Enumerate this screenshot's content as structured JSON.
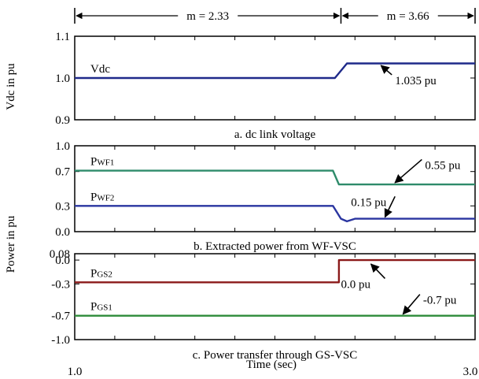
{
  "chart_data": {
    "type": "line",
    "x_range": [
      1.0,
      3.0
    ],
    "xlabel": "Time (sec)",
    "x_tick_labels": [
      "1.0",
      "3.0"
    ],
    "mode_bar": {
      "segments": [
        {
          "label": "m = 2.33",
          "x_start": 1.0,
          "x_end": 2.33
        },
        {
          "label": "m = 3.66",
          "x_start": 2.33,
          "x_end": 3.0
        }
      ]
    },
    "panels": [
      {
        "id": "a",
        "caption": "a. dc link voltage",
        "ylabel": "Vdc in pu",
        "ylim": [
          0.9,
          1.1
        ],
        "y_ticks": [
          {
            "value": 1.1,
            "label": "1.1"
          },
          {
            "value": 1.0,
            "label": "1.0"
          },
          {
            "value": 0.9,
            "label": "0.9"
          }
        ],
        "series": [
          {
            "name": "Vdc",
            "name_sub": "",
            "color": "#1f2a8a",
            "points": [
              [
                1.0,
                1.0
              ],
              [
                2.3,
                1.0
              ],
              [
                2.36,
                1.035
              ],
              [
                3.0,
                1.035
              ]
            ]
          }
        ],
        "annotations": [
          {
            "text": "1.035 pu",
            "x": 2.6,
            "y": 0.985,
            "arrow_to": [
              2.53,
              1.03
            ]
          }
        ]
      },
      {
        "id": "b",
        "caption": "b. Extracted power from WF-VSC",
        "ylabel": "",
        "ylim": [
          0.0,
          1.0
        ],
        "y_ticks": [
          {
            "value": 1.0,
            "label": "1.0"
          },
          {
            "value": 0.7,
            "label": "0.7"
          },
          {
            "value": 0.3,
            "label": "0.3"
          },
          {
            "value": 0.0,
            "label": "0.0"
          }
        ],
        "series": [
          {
            "name": "P",
            "name_sub": "WF1",
            "color": "#2e8b6a",
            "points": [
              [
                1.0,
                0.71
              ],
              [
                2.29,
                0.71
              ],
              [
                2.32,
                0.55
              ],
              [
                3.0,
                0.55
              ]
            ]
          },
          {
            "name": "P",
            "name_sub": "WF2",
            "color": "#2a35a0",
            "points": [
              [
                1.0,
                0.3
              ],
              [
                2.29,
                0.3
              ],
              [
                2.33,
                0.15
              ],
              [
                2.36,
                0.12
              ],
              [
                2.4,
                0.15
              ],
              [
                3.0,
                0.15
              ]
            ]
          }
        ],
        "annotations": [
          {
            "text": "0.55 pu",
            "x": 2.75,
            "y": 0.73,
            "arrow_to": [
              2.6,
              0.57
            ]
          },
          {
            "text": "0.15 pu",
            "x": 2.38,
            "y": 0.3,
            "arrow_to": [
              2.55,
              0.17
            ]
          }
        ]
      },
      {
        "id": "c",
        "caption": "c. Power transfer through GS-VSC",
        "ylabel": "Power in pu",
        "ylim": [
          -1.0,
          0.08
        ],
        "y_ticks": [
          {
            "value": 0.08,
            "label": "0.08"
          },
          {
            "value": 0.0,
            "label": "0.0"
          },
          {
            "value": -0.3,
            "label": "-0.3"
          },
          {
            "value": -0.7,
            "label": "-0.7"
          },
          {
            "value": -1.0,
            "label": "-1.0"
          }
        ],
        "series": [
          {
            "name": "P",
            "name_sub": "GS2",
            "color": "#8b1a1a",
            "points": [
              [
                1.0,
                -0.28
              ],
              [
                2.32,
                -0.28
              ],
              [
                2.32,
                0.0
              ],
              [
                3.0,
                0.0
              ]
            ]
          },
          {
            "name": "P",
            "name_sub": "GS1",
            "color": "#2e8b3a",
            "points": [
              [
                1.0,
                -0.7
              ],
              [
                3.0,
                -0.7
              ]
            ]
          }
        ],
        "annotations": [
          {
            "text": "0.0 pu",
            "x": 2.33,
            "y": -0.35,
            "arrow_to": [
              2.48,
              -0.05
            ]
          },
          {
            "text": "-0.7 pu",
            "x": 2.74,
            "y": -0.55,
            "arrow_to": [
              2.64,
              -0.68
            ]
          }
        ]
      }
    ]
  }
}
